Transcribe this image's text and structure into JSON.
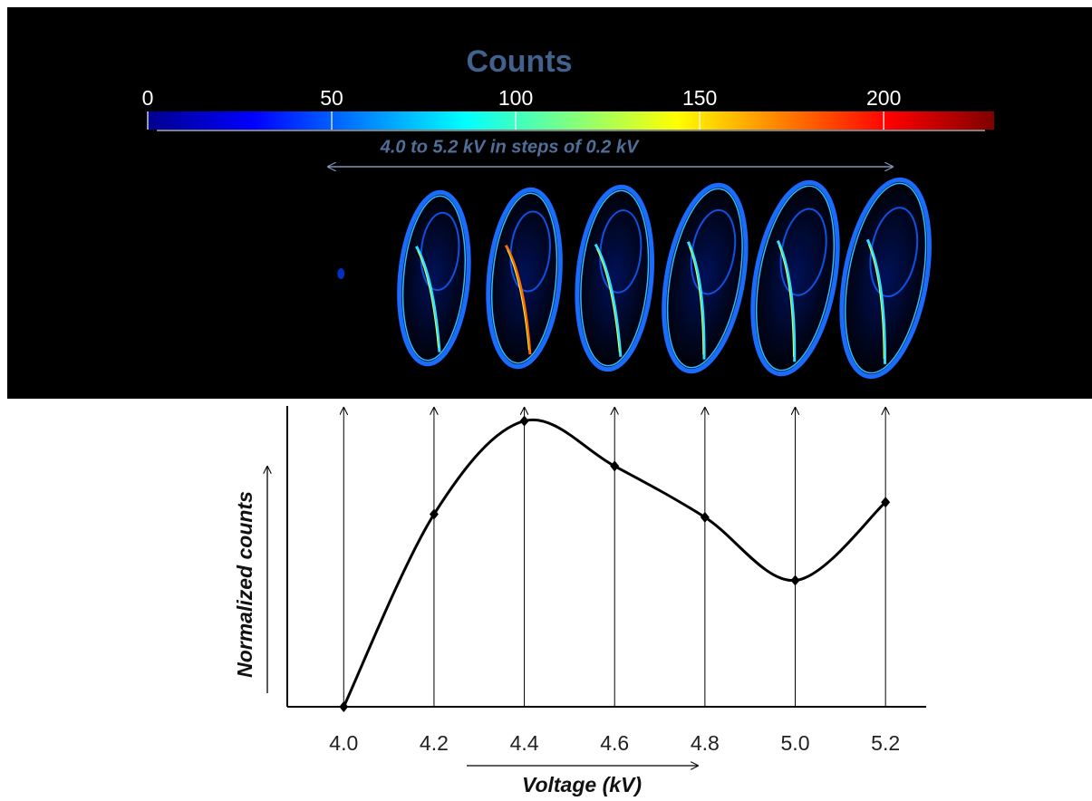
{
  "chart_data": [
    {
      "type": "colorbar",
      "title": "Counts",
      "colormap": "jet",
      "xlim": [
        0,
        230
      ],
      "xticks": [
        0,
        50,
        100,
        150,
        200
      ],
      "annotation": "4.0 to 5.2 kV in steps of 0.2 kV"
    },
    {
      "type": "line",
      "x_label": "Voltage (kV)",
      "y_label": "Normalized counts",
      "x": [
        4.0,
        4.2,
        4.4,
        4.6,
        4.8,
        5.0,
        5.2
      ],
      "values": [
        0,
        0.64,
        0.95,
        0.8,
        0.63,
        0.42,
        0.68
      ],
      "color": "#000000",
      "xlim": [
        3.875,
        5.29
      ],
      "ylim": [
        0,
        1
      ],
      "xticks": [
        {
          "value": 4.0,
          "label": "4.0"
        },
        {
          "value": 4.2,
          "label": "4.2"
        },
        {
          "value": 4.4,
          "label": "4.4"
        },
        {
          "value": 4.6,
          "label": "4.6"
        },
        {
          "value": 4.8,
          "label": "4.8"
        },
        {
          "value": 5.0,
          "label": "5.0"
        },
        {
          "value": 5.2,
          "label": "5.2"
        }
      ]
    }
  ]
}
